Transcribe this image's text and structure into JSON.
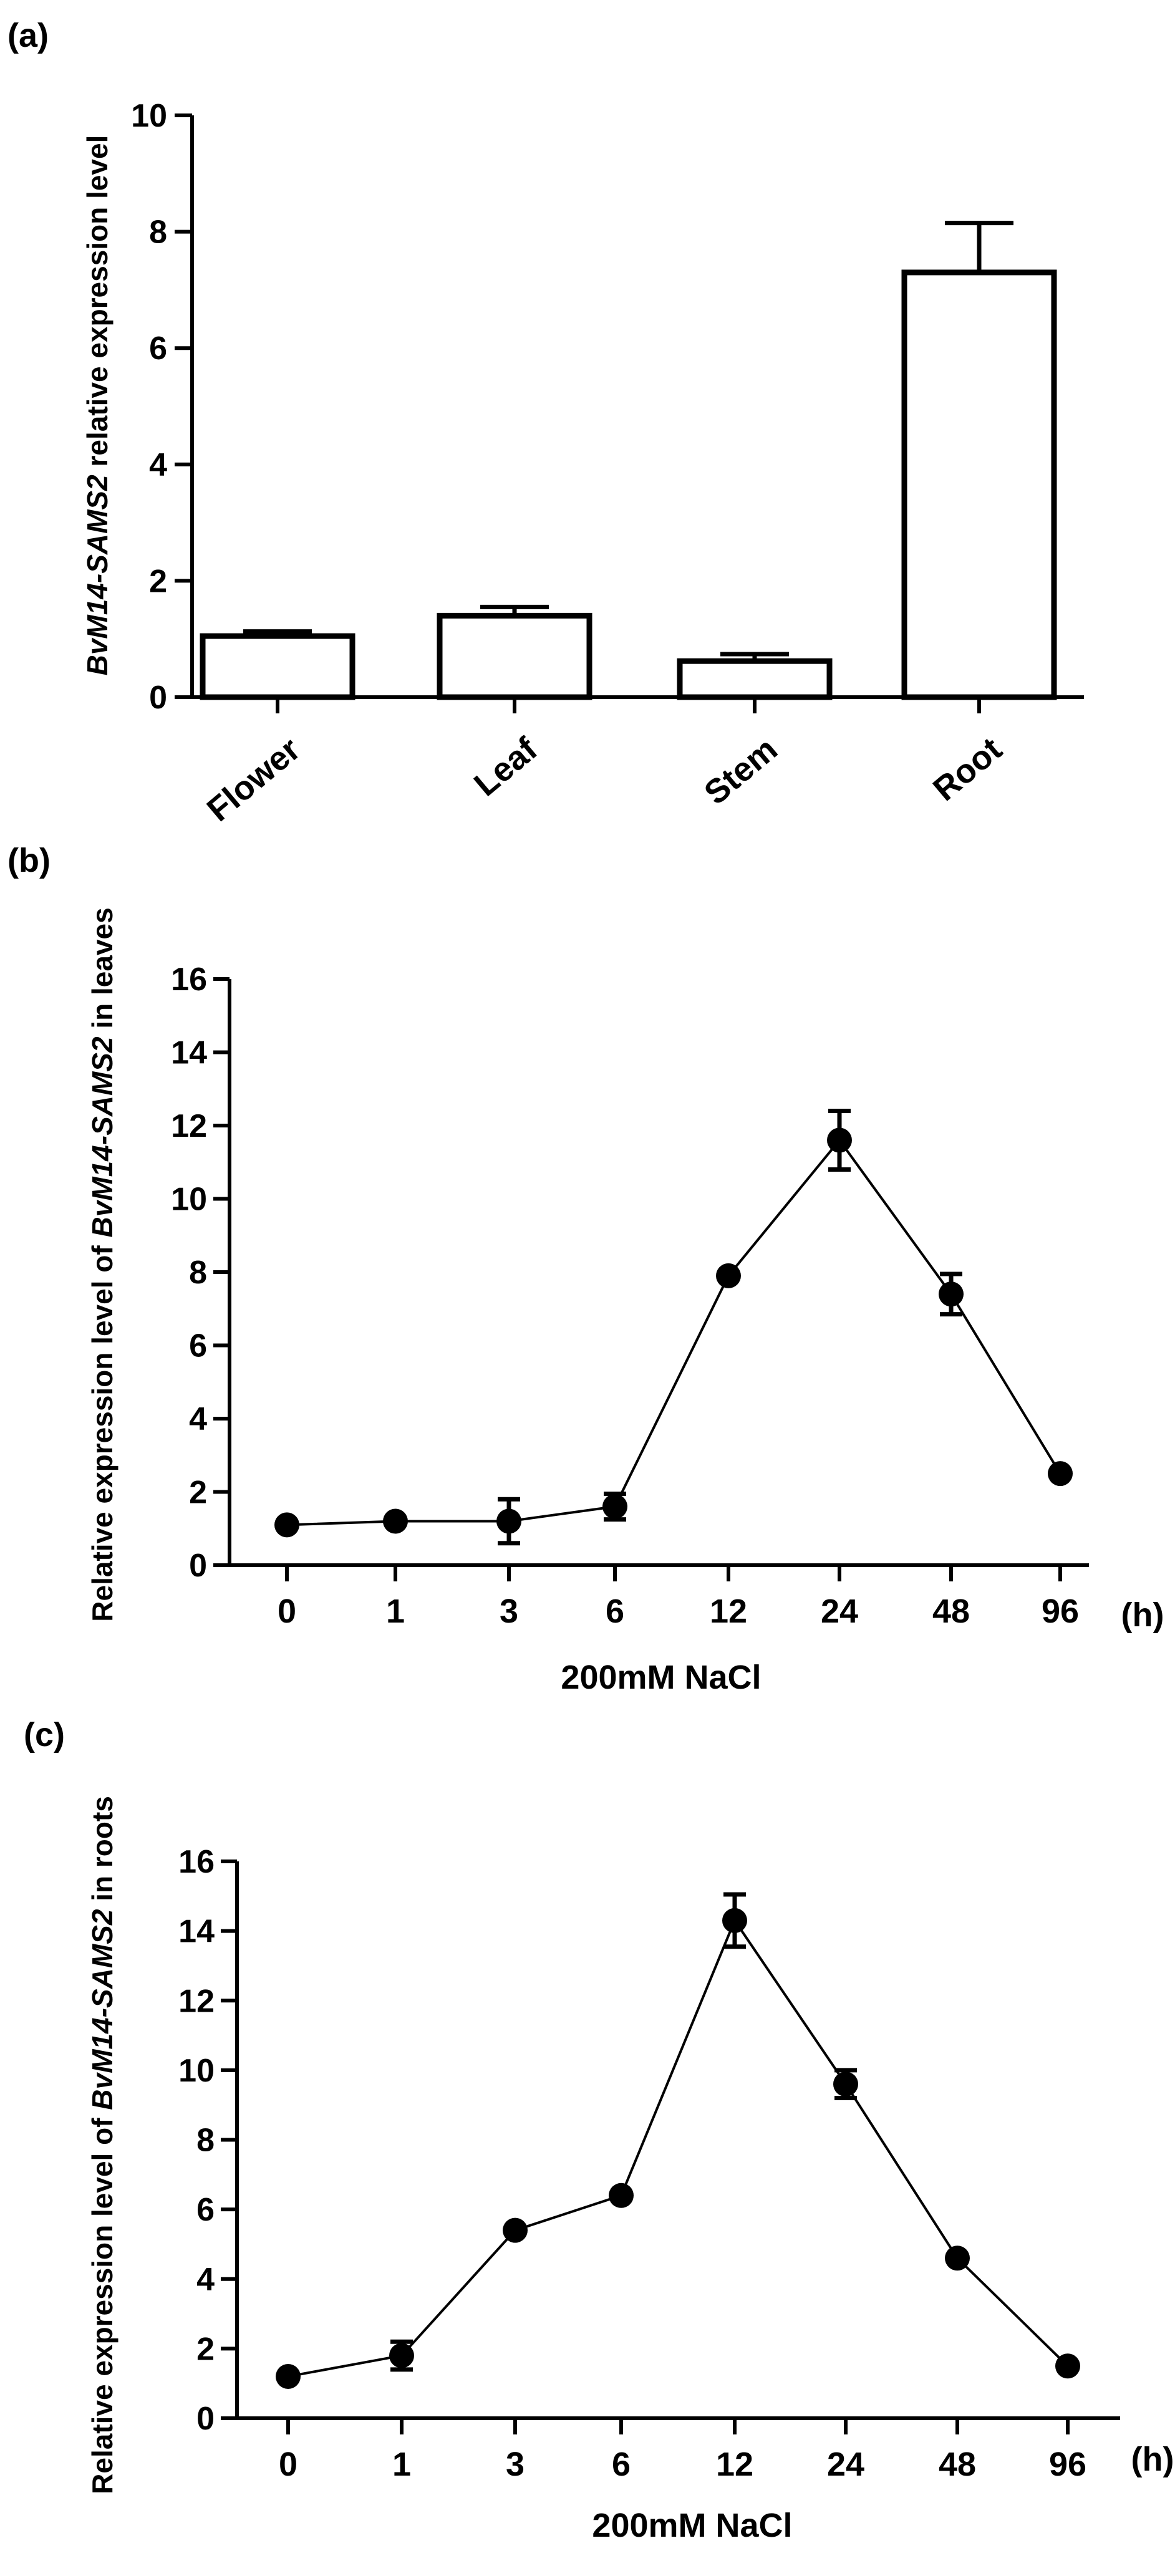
{
  "chart_data": [
    {
      "id": "a",
      "panel_label": "(a)",
      "type": "bar",
      "categories": [
        "Flower",
        "Leaf",
        "Stem",
        "Root"
      ],
      "values": [
        1.05,
        1.4,
        0.62,
        7.3
      ],
      "errors": [
        0.08,
        0.15,
        0.12,
        0.85
      ],
      "ylabel_italic": "BvM14-SAMS2",
      "ylabel_rest": " relative expression level",
      "ylim": [
        0,
        10
      ],
      "yticks": [
        "0",
        "2",
        "4",
        "6",
        "8",
        "10"
      ],
      "color": "#ffffff"
    },
    {
      "id": "b",
      "panel_label": "(b)",
      "type": "line",
      "categories": [
        "0",
        "1",
        "3",
        "6",
        "12",
        "24",
        "48",
        "96"
      ],
      "values": [
        1.1,
        1.2,
        1.2,
        1.6,
        7.9,
        11.6,
        7.4,
        2.5
      ],
      "errors": [
        0.1,
        0.1,
        0.6,
        0.35,
        0.1,
        0.8,
        0.55,
        0.1
      ],
      "ylabel_pre": "Relative expression level of ",
      "ylabel_italic": "BvM14-SAMS2",
      "ylabel_post": " in leaves",
      "xlabel": "200mM NaCl",
      "unit": "(h)",
      "ylim": [
        0,
        16
      ],
      "yticks": [
        "0",
        "2",
        "4",
        "6",
        "8",
        "10",
        "12",
        "14",
        "16"
      ]
    },
    {
      "id": "c",
      "panel_label": "(c)",
      "type": "line",
      "categories": [
        "0",
        "1",
        "3",
        "6",
        "12",
        "24",
        "48",
        "96"
      ],
      "values": [
        1.2,
        1.8,
        5.4,
        6.4,
        14.3,
        9.6,
        4.6,
        1.5
      ],
      "errors": [
        0.1,
        0.4,
        0.15,
        0.1,
        0.75,
        0.4,
        0.1,
        0.1
      ],
      "ylabel_pre": "Relative expression level of ",
      "ylabel_italic": "BvM14-SAMS2",
      "ylabel_post": " in roots",
      "xlabel": "200mM NaCl",
      "unit": "(h)",
      "ylim": [
        0,
        16
      ],
      "yticks": [
        "0",
        "2",
        "4",
        "6",
        "8",
        "10",
        "12",
        "14",
        "16"
      ]
    }
  ]
}
